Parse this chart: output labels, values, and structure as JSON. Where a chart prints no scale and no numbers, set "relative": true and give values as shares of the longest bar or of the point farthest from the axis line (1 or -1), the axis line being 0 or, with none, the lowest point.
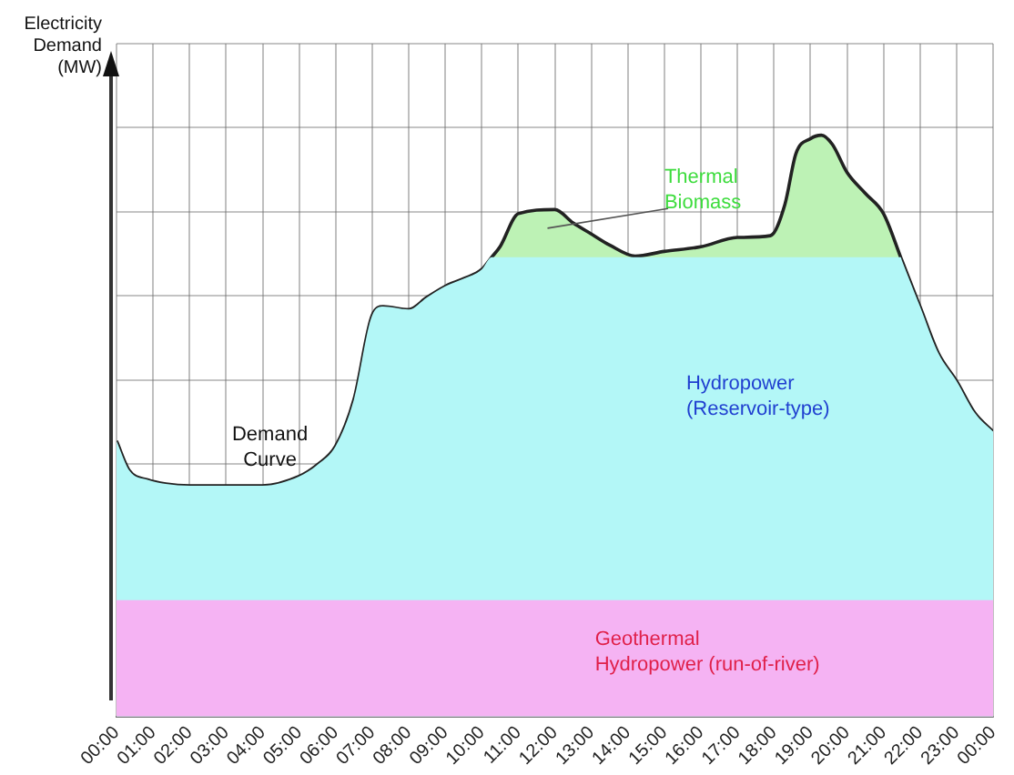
{
  "chart_data": {
    "type": "area",
    "relative": true,
    "annotations": [
      {
        "text": "Demand Curve",
        "x": 4.2,
        "y": 0.397
      }
    ],
    "ylabel": "Electricity Demand (MW)",
    "grid": true,
    "legend": false,
    "xlim": [
      0,
      24
    ],
    "xticks": [
      {
        "value": 0,
        "label": "00:00"
      },
      {
        "value": 1,
        "label": "01:00"
      },
      {
        "value": 2,
        "label": "02:00"
      },
      {
        "value": 3,
        "label": "03:00"
      },
      {
        "value": 4,
        "label": "04:00"
      },
      {
        "value": 5,
        "label": "05:00"
      },
      {
        "value": 6,
        "label": "06:00"
      },
      {
        "value": 7,
        "label": "07:00"
      },
      {
        "value": 8,
        "label": "08:00"
      },
      {
        "value": 9,
        "label": "09:00"
      },
      {
        "value": 10,
        "label": "10:00"
      },
      {
        "value": 11,
        "label": "11:00"
      },
      {
        "value": 12,
        "label": "12:00"
      },
      {
        "value": 13,
        "label": "13:00"
      },
      {
        "value": 14,
        "label": "14:00"
      },
      {
        "value": 15,
        "label": "15:00"
      },
      {
        "value": 16,
        "label": "16:00"
      },
      {
        "value": 17,
        "label": "17:00"
      },
      {
        "value": 18,
        "label": "18:00"
      },
      {
        "value": 19,
        "label": "19:00"
      },
      {
        "value": 20,
        "label": "20:00"
      },
      {
        "value": 21,
        "label": "21:00"
      },
      {
        "value": 22,
        "label": "22:00"
      },
      {
        "value": 23,
        "label": "23:00"
      },
      {
        "value": 24,
        "label": "00:00"
      }
    ],
    "x": [
      0,
      0.35,
      0.85,
      1.35,
      2,
      3,
      4,
      5,
      5.5,
      6,
      6.5,
      7,
      7.3,
      8,
      8.5,
      9,
      9.5,
      10,
      10.27,
      10.5,
      11,
      12,
      12.5,
      13,
      13.5,
      14.2,
      15,
      16,
      17,
      17.9,
      18.3,
      18.6,
      19,
      19.3,
      19.6,
      20,
      20.5,
      21,
      21.47,
      21.5,
      22,
      22.5,
      23,
      23.5,
      24
    ],
    "series": [
      {
        "name": "Geothermal Hydropower (run-of-river)",
        "color": "#f5b3f3",
        "values": [
          0.2,
          0.2,
          0.2,
          0.2,
          0.2,
          0.2,
          0.2,
          0.2,
          0.2,
          0.2,
          0.2,
          0.2,
          0.2,
          0.2,
          0.2,
          0.2,
          0.2,
          0.2,
          0.2,
          0.2,
          0.2,
          0.2,
          0.2,
          0.2,
          0.2,
          0.2,
          0.2,
          0.2,
          0.2,
          0.2,
          0.2,
          0.2,
          0.2,
          0.2,
          0.2,
          0.2,
          0.2,
          0.2,
          0.2,
          0.2,
          0.2,
          0.2,
          0.2,
          0.2,
          0.2
        ]
      },
      {
        "name": "Hydropower (Reservoir-type)",
        "color": "#b3f7f7",
        "values": [
          0.474,
          0.423,
          0.407,
          0.4,
          0.397,
          0.397,
          0.397,
          0.413,
          0.433,
          0.465,
          0.545,
          0.69,
          0.705,
          0.7,
          0.721,
          0.74,
          0.753,
          0.769,
          0.79,
          0.79,
          0.79,
          0.79,
          0.79,
          0.79,
          0.79,
          0.79,
          0.79,
          0.79,
          0.79,
          0.79,
          0.79,
          0.79,
          0.79,
          0.79,
          0.79,
          0.79,
          0.79,
          0.79,
          0.79,
          0.785,
          0.705,
          0.625,
          0.577,
          0.522,
          0.49
        ]
      },
      {
        "name": "Thermal Biomass",
        "color": "#bdf2b5",
        "values": [
          0.474,
          0.423,
          0.407,
          0.4,
          0.397,
          0.397,
          0.397,
          0.413,
          0.433,
          0.465,
          0.545,
          0.69,
          0.705,
          0.7,
          0.721,
          0.74,
          0.753,
          0.769,
          0.79,
          0.808,
          0.865,
          0.872,
          0.849,
          0.83,
          0.811,
          0.792,
          0.8,
          0.808,
          0.824,
          0.827,
          0.881,
          0.968,
          0.994,
          1,
          0.984,
          0.936,
          0.9,
          0.865,
          0.79,
          0.785,
          0.705,
          0.625,
          0.577,
          0.522,
          0.49
        ]
      }
    ]
  }
}
